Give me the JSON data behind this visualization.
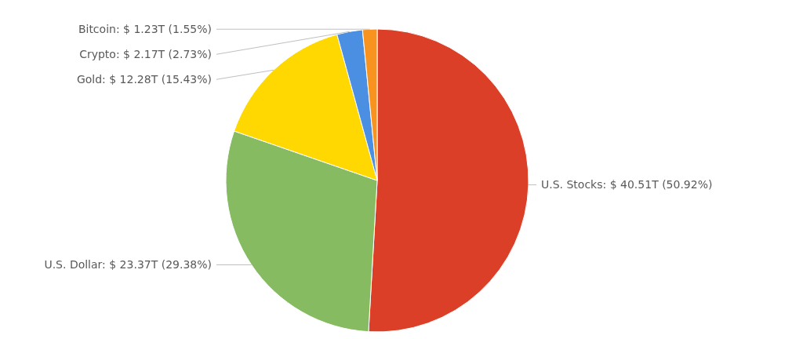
{
  "chart_data": {
    "type": "pie",
    "categories": [
      "U.S. Stocks",
      "U.S. Dollar",
      "Gold",
      "Crypto",
      "Bitcoin"
    ],
    "values": [
      50.92,
      29.38,
      15.43,
      2.73,
      1.55
    ],
    "colors": [
      "#dc3f28",
      "#87bb62",
      "#fed800",
      "#4b8fe2",
      "#f7931e"
    ],
    "value_labels": [
      "$ 40.51T (50.92%)",
      "$ 23.37T (29.38%)",
      "$ 12.28T (15.43%)",
      "$ 2.17T (2.73%)",
      "$ 1.23T (1.55%)"
    ],
    "legend": false
  }
}
